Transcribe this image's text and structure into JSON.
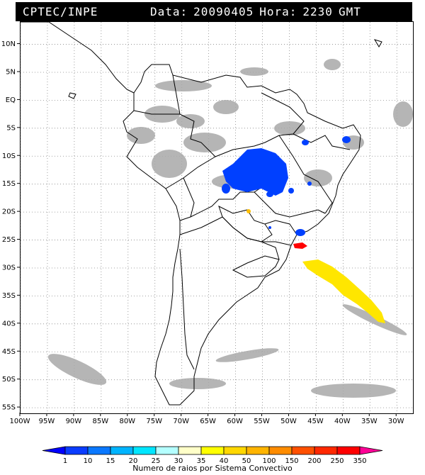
{
  "header": {
    "source": "CPTEC/INPE",
    "data_label": "Data:",
    "date": "20090405",
    "hora_label": "Hora:",
    "time": "2230",
    "zone": "GMT"
  },
  "map": {
    "lon_ticks": [
      "100W",
      "95W",
      "90W",
      "85W",
      "80W",
      "75W",
      "70W",
      "65W",
      "60W",
      "55W",
      "50W",
      "45W",
      "40W",
      "35W",
      "30W"
    ],
    "lat_ticks": [
      "10N",
      "5N",
      "EQ",
      "5S",
      "10S",
      "15S",
      "20S",
      "25S",
      "30S",
      "35S",
      "40S",
      "45S",
      "50S",
      "55S"
    ],
    "lon_range": [
      -100,
      -27
    ],
    "lat_range": [
      14,
      -56
    ],
    "grid": "dotted",
    "colors": {
      "land_outline": "#000000",
      "cloud": "#a0a0a0",
      "blue": "#0040ff",
      "yellow": "#ffe600",
      "orange": "#ffbf00",
      "red": "#ff0000"
    }
  },
  "colorbar": {
    "labels": [
      "1",
      "10",
      "15",
      "20",
      "25",
      "30",
      "35",
      "40",
      "50",
      "100",
      "150",
      "200",
      "250",
      "350"
    ],
    "colors": [
      "#0000ff",
      "#0a3cff",
      "#0a78ff",
      "#00b4ff",
      "#00e6ff",
      "#b4ffff",
      "#ffffc8",
      "#ffff00",
      "#ffd700",
      "#ffb400",
      "#ff8c00",
      "#ff5000",
      "#ff2800",
      "#ff0000",
      "#ff0096"
    ],
    "title": "Numero de raios por Sistema Convectivo"
  }
}
